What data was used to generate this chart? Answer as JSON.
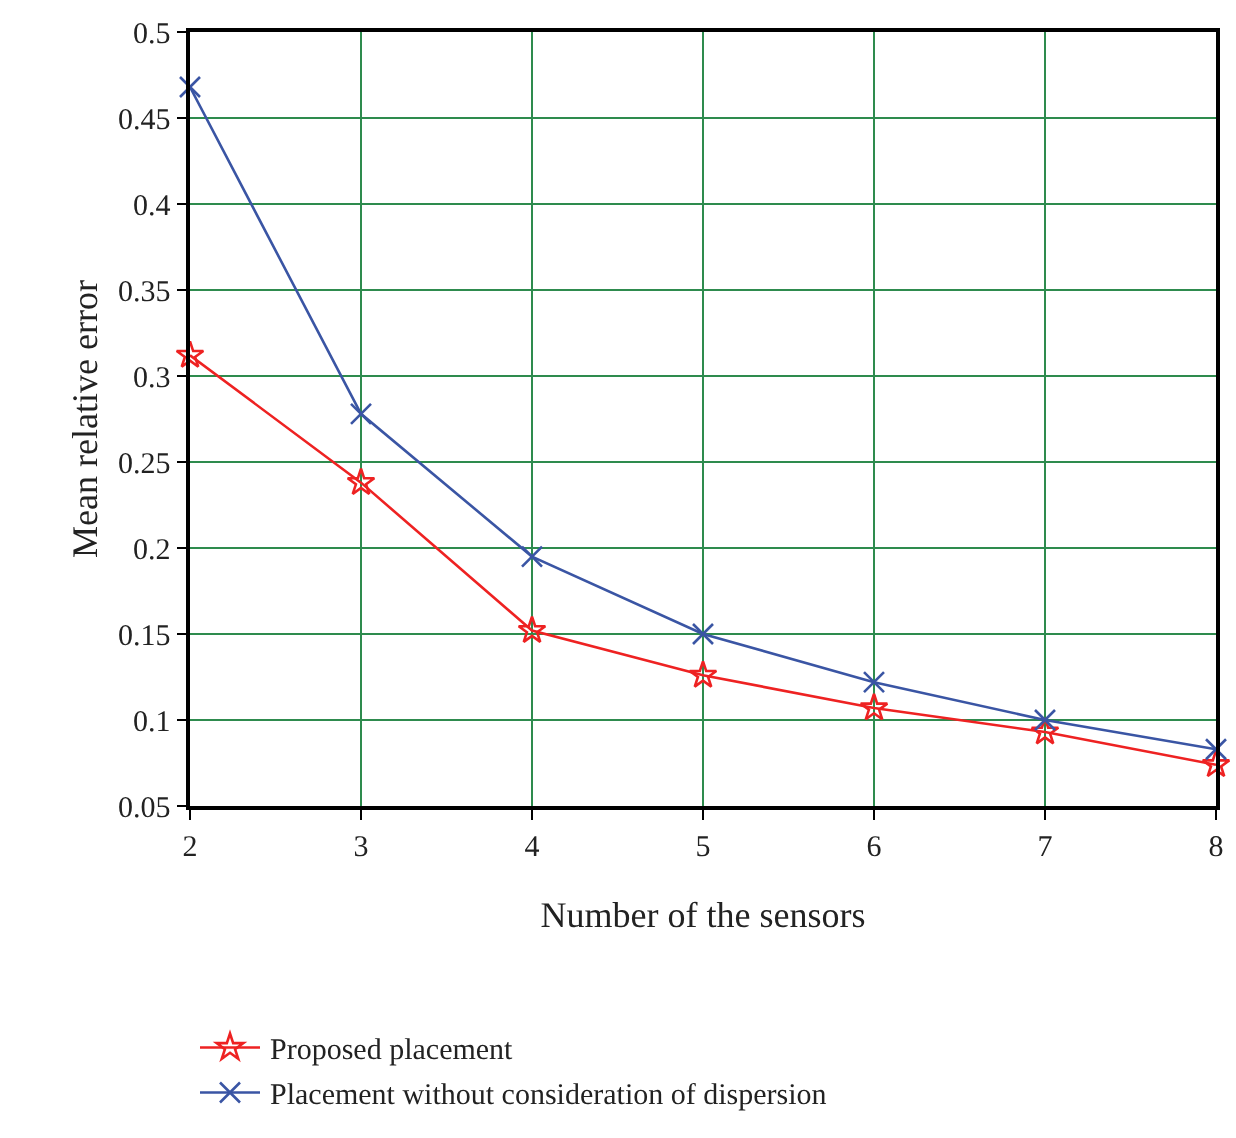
{
  "chart_data": {
    "type": "line",
    "xlabel": "Number of the sensors",
    "ylabel": "Mean relative error",
    "x": [
      2,
      3,
      4,
      5,
      6,
      7,
      8
    ],
    "series": [
      {
        "name": "Proposed placement",
        "color": "#ee2222",
        "marker": "star",
        "values": [
          0.312,
          0.238,
          0.152,
          0.126,
          0.107,
          0.093,
          0.074
        ]
      },
      {
        "name": "Placement without consideration of dispersion",
        "color": "#3a55a4",
        "marker": "cross",
        "values": [
          0.468,
          0.278,
          0.195,
          0.15,
          0.122,
          0.1,
          0.083
        ]
      }
    ],
    "xlim": [
      2,
      8
    ],
    "xticks": [
      2,
      3,
      4,
      5,
      6,
      7,
      8
    ],
    "ylim": [
      0.05,
      0.5
    ],
    "yticks": [
      0.05,
      0.1,
      0.15,
      0.2,
      0.25,
      0.3,
      0.35,
      0.4,
      0.45,
      0.5
    ],
    "grid": true,
    "legend": "bottom",
    "line_style": "solid"
  }
}
